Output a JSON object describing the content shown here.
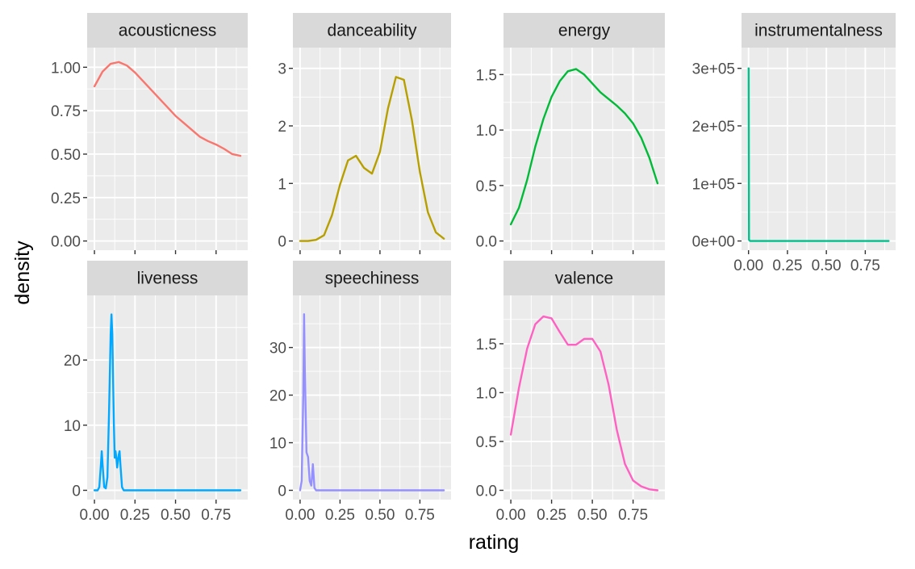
{
  "chart_data": {
    "type": "line",
    "xlabel": "rating",
    "ylabel": "density",
    "grid": true,
    "facets": [
      {
        "name": "acousticness",
        "color": "#F8766D",
        "xlim": [
          0,
          0.9
        ],
        "ylim": [
          0,
          1.06
        ],
        "y_ticks": [
          {
            "value": 0,
            "label": "0.00"
          },
          {
            "value": 0.25,
            "label": "0.25"
          },
          {
            "value": 0.5,
            "label": "0.50"
          },
          {
            "value": 0.75,
            "label": "0.75"
          },
          {
            "value": 1.0,
            "label": "1.00"
          }
        ],
        "x_ticks": [],
        "points": [
          [
            0,
            0.89
          ],
          [
            0.05,
            0.975
          ],
          [
            0.1,
            1.02
          ],
          [
            0.15,
            1.03
          ],
          [
            0.2,
            1.01
          ],
          [
            0.25,
            0.97
          ],
          [
            0.3,
            0.92
          ],
          [
            0.35,
            0.87
          ],
          [
            0.4,
            0.82
          ],
          [
            0.45,
            0.77
          ],
          [
            0.5,
            0.72
          ],
          [
            0.55,
            0.68
          ],
          [
            0.6,
            0.64
          ],
          [
            0.65,
            0.6
          ],
          [
            0.7,
            0.575
          ],
          [
            0.75,
            0.555
          ],
          [
            0.8,
            0.53
          ],
          [
            0.85,
            0.5
          ],
          [
            0.9,
            0.49
          ]
        ]
      },
      {
        "name": "danceability",
        "color": "#B79F00",
        "xlim": [
          0,
          0.9
        ],
        "ylim": [
          0,
          3.2
        ],
        "y_ticks": [
          {
            "value": 0,
            "label": "0"
          },
          {
            "value": 1,
            "label": "1"
          },
          {
            "value": 2,
            "label": "2"
          },
          {
            "value": 3,
            "label": "3"
          }
        ],
        "x_ticks": [],
        "points": [
          [
            0,
            0
          ],
          [
            0.05,
            0
          ],
          [
            0.1,
            0.02
          ],
          [
            0.15,
            0.1
          ],
          [
            0.2,
            0.45
          ],
          [
            0.25,
            0.98
          ],
          [
            0.3,
            1.4
          ],
          [
            0.35,
            1.48
          ],
          [
            0.4,
            1.27
          ],
          [
            0.45,
            1.17
          ],
          [
            0.5,
            1.55
          ],
          [
            0.55,
            2.3
          ],
          [
            0.6,
            2.85
          ],
          [
            0.65,
            2.8
          ],
          [
            0.7,
            2.1
          ],
          [
            0.75,
            1.2
          ],
          [
            0.8,
            0.5
          ],
          [
            0.85,
            0.15
          ],
          [
            0.9,
            0.04
          ]
        ]
      },
      {
        "name": "energy",
        "color": "#00BA38",
        "xlim": [
          0,
          0.9
        ],
        "ylim": [
          0,
          1.66
        ],
        "y_ticks": [
          {
            "value": 0,
            "label": "0.0"
          },
          {
            "value": 0.5,
            "label": "0.5"
          },
          {
            "value": 1.0,
            "label": "1.0"
          },
          {
            "value": 1.5,
            "label": "1.5"
          }
        ],
        "x_ticks": [],
        "points": [
          [
            0,
            0.15
          ],
          [
            0.05,
            0.3
          ],
          [
            0.1,
            0.55
          ],
          [
            0.15,
            0.85
          ],
          [
            0.2,
            1.1
          ],
          [
            0.25,
            1.3
          ],
          [
            0.3,
            1.44
          ],
          [
            0.35,
            1.53
          ],
          [
            0.4,
            1.55
          ],
          [
            0.45,
            1.5
          ],
          [
            0.5,
            1.42
          ],
          [
            0.55,
            1.34
          ],
          [
            0.6,
            1.28
          ],
          [
            0.65,
            1.22
          ],
          [
            0.7,
            1.15
          ],
          [
            0.75,
            1.06
          ],
          [
            0.8,
            0.93
          ],
          [
            0.85,
            0.75
          ],
          [
            0.9,
            0.52
          ]
        ]
      },
      {
        "name": "instrumentalness",
        "color": "#00C08B",
        "xlim": [
          0,
          0.9
        ],
        "ylim": [
          0,
          320000
        ],
        "y_ticks": [
          {
            "value": 0,
            "label": "0e+00"
          },
          {
            "value": 100000,
            "label": "1e+05"
          },
          {
            "value": 200000,
            "label": "2e+05"
          },
          {
            "value": 300000,
            "label": "3e+05"
          }
        ],
        "x_ticks": [
          {
            "value": 0,
            "label": "0.00"
          },
          {
            "value": 0.25,
            "label": "0.25"
          },
          {
            "value": 0.5,
            "label": "0.50"
          },
          {
            "value": 0.75,
            "label": "0.75"
          }
        ],
        "points": [
          [
            0,
            300000
          ],
          [
            0.001,
            300000
          ],
          [
            0.003,
            2000
          ],
          [
            0.01,
            0
          ],
          [
            0.9,
            0
          ]
        ]
      },
      {
        "name": "liveness",
        "color": "#00A9FF",
        "xlim": [
          0,
          0.9
        ],
        "ylim": [
          0,
          28.5
        ],
        "y_ticks": [
          {
            "value": 0,
            "label": "0"
          },
          {
            "value": 10,
            "label": "10"
          },
          {
            "value": 20,
            "label": "20"
          }
        ],
        "x_ticks": [
          {
            "value": 0,
            "label": "0.00"
          },
          {
            "value": 0.25,
            "label": "0.25"
          },
          {
            "value": 0.5,
            "label": "0.50"
          },
          {
            "value": 0.75,
            "label": "0.75"
          }
        ],
        "points": [
          [
            0,
            0
          ],
          [
            0.02,
            0
          ],
          [
            0.03,
            0.5
          ],
          [
            0.04,
            4
          ],
          [
            0.045,
            6
          ],
          [
            0.05,
            4
          ],
          [
            0.06,
            0.5
          ],
          [
            0.07,
            0.3
          ],
          [
            0.08,
            2
          ],
          [
            0.09,
            12
          ],
          [
            0.1,
            24
          ],
          [
            0.105,
            27
          ],
          [
            0.11,
            24
          ],
          [
            0.12,
            10
          ],
          [
            0.125,
            5
          ],
          [
            0.13,
            6
          ],
          [
            0.135,
            5
          ],
          [
            0.14,
            3.5
          ],
          [
            0.15,
            5.5
          ],
          [
            0.155,
            6
          ],
          [
            0.16,
            4
          ],
          [
            0.17,
            0.5
          ],
          [
            0.18,
            0
          ],
          [
            0.9,
            0
          ]
        ]
      },
      {
        "name": "speechiness",
        "color": "#9590FF",
        "xlim": [
          0,
          0.9
        ],
        "ylim": [
          0,
          39
        ],
        "y_ticks": [
          {
            "value": 0,
            "label": "0"
          },
          {
            "value": 10,
            "label": "10"
          },
          {
            "value": 20,
            "label": "20"
          },
          {
            "value": 30,
            "label": "30"
          }
        ],
        "x_ticks": [
          {
            "value": 0,
            "label": "0.00"
          },
          {
            "value": 0.25,
            "label": "0.25"
          },
          {
            "value": 0.5,
            "label": "0.50"
          },
          {
            "value": 0.75,
            "label": "0.75"
          }
        ],
        "points": [
          [
            0,
            0
          ],
          [
            0.01,
            2
          ],
          [
            0.02,
            20
          ],
          [
            0.025,
            37
          ],
          [
            0.03,
            25
          ],
          [
            0.04,
            8
          ],
          [
            0.05,
            7
          ],
          [
            0.06,
            2
          ],
          [
            0.07,
            1
          ],
          [
            0.075,
            3
          ],
          [
            0.08,
            5.5
          ],
          [
            0.085,
            3
          ],
          [
            0.09,
            0.5
          ],
          [
            0.1,
            0
          ],
          [
            0.9,
            0
          ]
        ]
      },
      {
        "name": "valence",
        "color": "#FF61C3",
        "xlim": [
          0,
          0.9
        ],
        "ylim": [
          0,
          1.9
        ],
        "y_ticks": [
          {
            "value": 0,
            "label": "0.0"
          },
          {
            "value": 0.5,
            "label": "0.5"
          },
          {
            "value": 1.0,
            "label": "1.0"
          },
          {
            "value": 1.5,
            "label": "1.5"
          }
        ],
        "x_ticks": [
          {
            "value": 0,
            "label": "0.00"
          },
          {
            "value": 0.25,
            "label": "0.25"
          },
          {
            "value": 0.5,
            "label": "0.50"
          },
          {
            "value": 0.75,
            "label": "0.75"
          }
        ],
        "points": [
          [
            0,
            0.57
          ],
          [
            0.05,
            1.05
          ],
          [
            0.1,
            1.45
          ],
          [
            0.15,
            1.7
          ],
          [
            0.2,
            1.78
          ],
          [
            0.25,
            1.76
          ],
          [
            0.3,
            1.62
          ],
          [
            0.35,
            1.49
          ],
          [
            0.4,
            1.49
          ],
          [
            0.45,
            1.55
          ],
          [
            0.5,
            1.55
          ],
          [
            0.55,
            1.42
          ],
          [
            0.6,
            1.08
          ],
          [
            0.65,
            0.62
          ],
          [
            0.7,
            0.27
          ],
          [
            0.75,
            0.1
          ],
          [
            0.8,
            0.04
          ],
          [
            0.85,
            0.01
          ],
          [
            0.9,
            0
          ]
        ]
      }
    ]
  }
}
